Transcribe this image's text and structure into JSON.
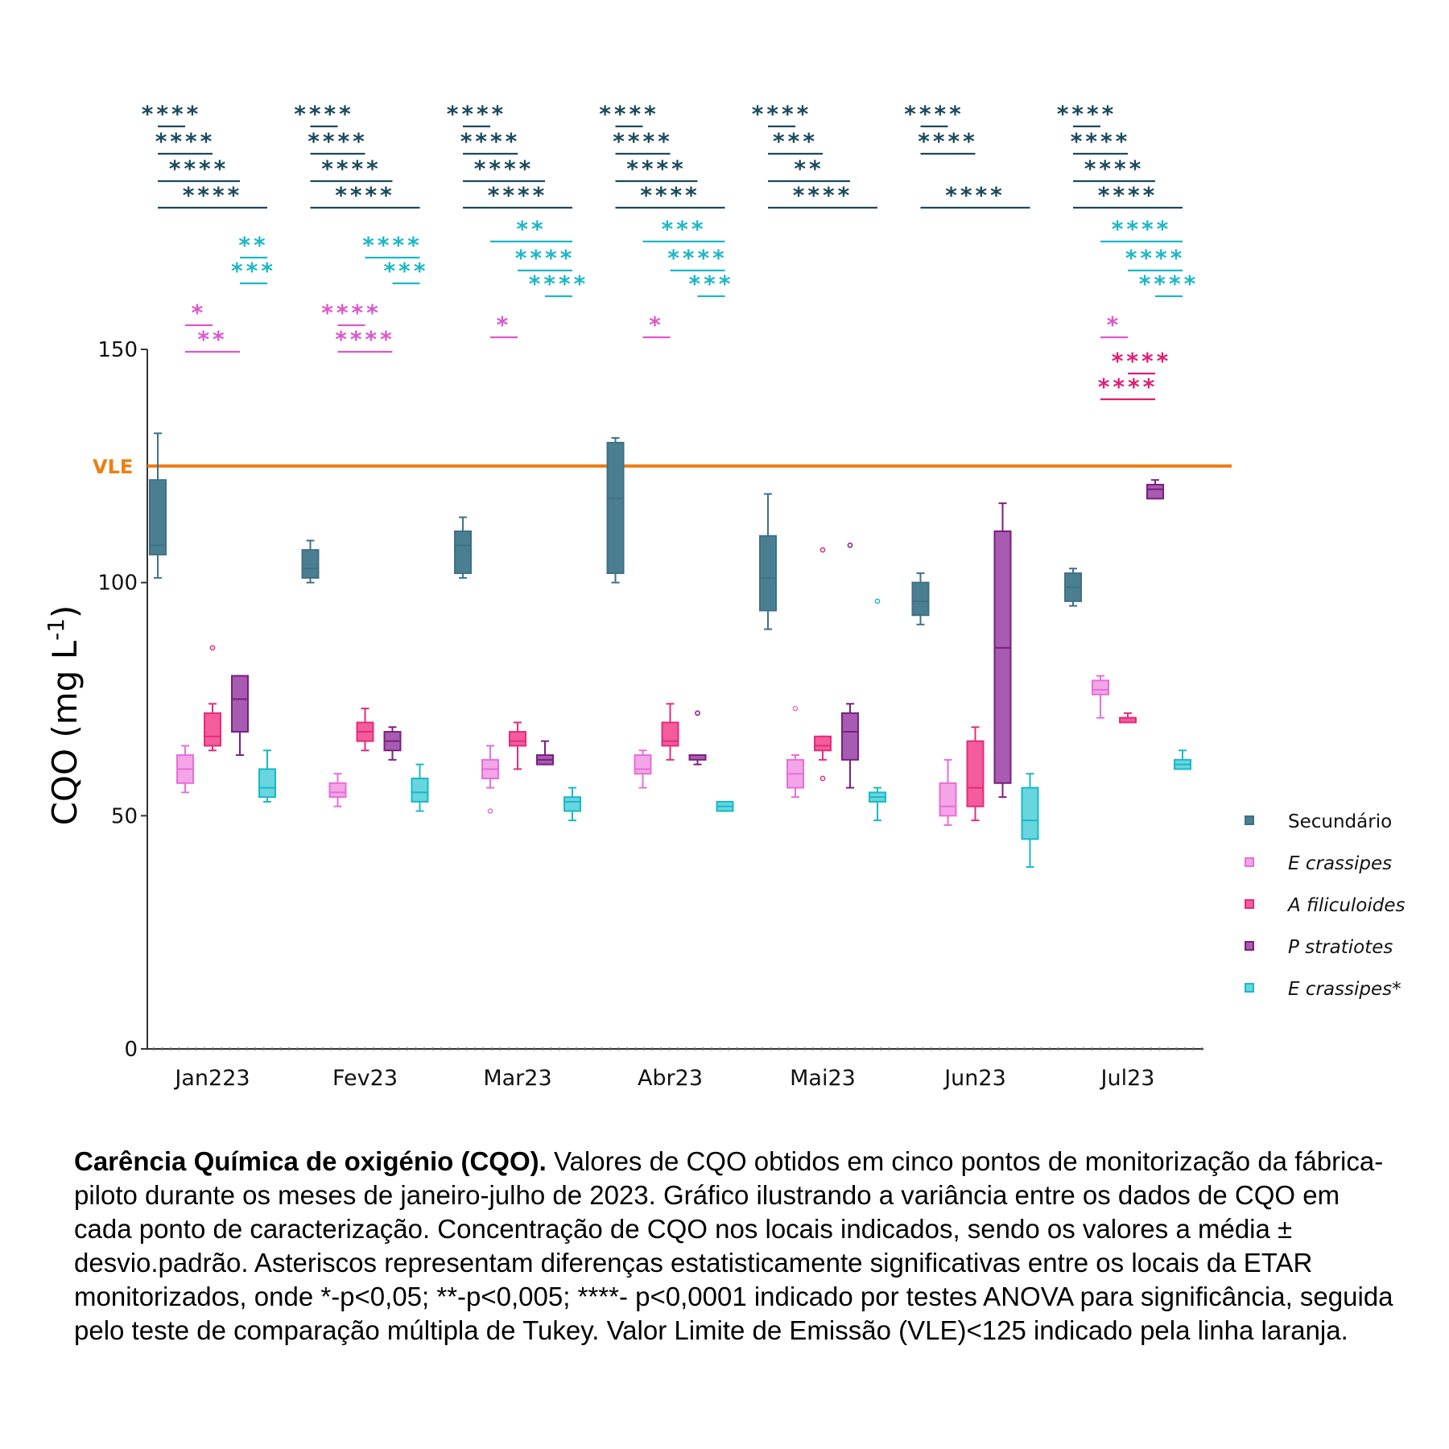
{
  "chart_data": {
    "type": "box",
    "ylabel": "CQO (mg L-1)",
    "ylim": [
      0,
      150
    ],
    "yticks": [
      0,
      50,
      100,
      150
    ],
    "categories": [
      "Jan223",
      "Fev23",
      "Mar23",
      "Abr23",
      "Mai23",
      "Jun23",
      "Jul23"
    ],
    "reference_line": {
      "label": "VLE",
      "value": 125,
      "color": "#ee7d12"
    },
    "legend_position": "right",
    "series": [
      {
        "name": "Secundário",
        "italic": false,
        "color": "#3f7185",
        "fill": "#4a7f92",
        "boxes": [
          {
            "min": 101,
            "q1": 106,
            "median": 108,
            "q3": 122,
            "max": 132
          },
          {
            "min": 100,
            "q1": 101,
            "median": 103,
            "q3": 107,
            "max": 109
          },
          {
            "min": 101,
            "q1": 102,
            "median": 108,
            "q3": 111,
            "max": 114
          },
          {
            "min": 100,
            "q1": 102,
            "median": 118,
            "q3": 130,
            "max": 131
          },
          {
            "min": 90,
            "q1": 94,
            "median": 101,
            "q3": 110,
            "max": 119
          },
          {
            "min": 91,
            "q1": 93,
            "median": 96,
            "q3": 100,
            "max": 102
          },
          {
            "min": 95,
            "q1": 96,
            "median": 99,
            "q3": 102,
            "max": 103
          }
        ],
        "outliers": [
          [],
          [],
          [],
          [],
          [],
          [],
          []
        ]
      },
      {
        "name": "E crassipes",
        "italic": true,
        "color": "#e66fd6",
        "fill": "#f3a5e8",
        "boxes": [
          {
            "min": 55,
            "q1": 57,
            "median": 60,
            "q3": 63,
            "max": 65
          },
          {
            "min": 52,
            "q1": 54,
            "median": 55,
            "q3": 57,
            "max": 59
          },
          {
            "min": 56,
            "q1": 58,
            "median": 60,
            "q3": 62,
            "max": 65
          },
          {
            "min": 56,
            "q1": 59,
            "median": 60,
            "q3": 63,
            "max": 64
          },
          {
            "min": 54,
            "q1": 56,
            "median": 59,
            "q3": 62,
            "max": 63
          },
          {
            "min": 48,
            "q1": 50,
            "median": 52,
            "q3": 57,
            "max": 62
          },
          {
            "min": 71,
            "q1": 76,
            "median": 77,
            "q3": 79,
            "max": 80
          }
        ],
        "outliers": [
          [],
          [],
          [
            51
          ],
          [],
          [
            73
          ],
          [],
          []
        ]
      },
      {
        "name": "A filiculoides",
        "italic": true,
        "color": "#e22d7c",
        "fill": "#f45c9b",
        "boxes": [
          {
            "min": 64,
            "q1": 65,
            "median": 67,
            "q3": 72,
            "max": 74
          },
          {
            "min": 64,
            "q1": 66,
            "median": 68,
            "q3": 70,
            "max": 73
          },
          {
            "min": 60,
            "q1": 65,
            "median": 66,
            "q3": 68,
            "max": 70
          },
          {
            "min": 62,
            "q1": 65,
            "median": 66,
            "q3": 70,
            "max": 74
          },
          {
            "min": 62,
            "q1": 64,
            "median": 65,
            "q3": 67,
            "max": 67
          },
          {
            "min": 49,
            "q1": 52,
            "median": 56,
            "q3": 66,
            "max": 69
          },
          {
            "min": 70,
            "q1": 70,
            "median": 71,
            "q3": 71,
            "max": 72
          }
        ],
        "outliers": [
          [
            86
          ],
          [],
          [],
          [],
          [
            107,
            58
          ],
          [],
          []
        ]
      },
      {
        "name": "P stratiotes",
        "italic": true,
        "color": "#7a1f7e",
        "fill": "#a75bb1",
        "boxes": [
          {
            "min": 63,
            "q1": 68,
            "median": 75,
            "q3": 80,
            "max": 80
          },
          {
            "min": 62,
            "q1": 64,
            "median": 66,
            "q3": 68,
            "max": 69
          },
          {
            "min": 61,
            "q1": 61,
            "median": 62,
            "q3": 63,
            "max": 66
          },
          {
            "min": 61,
            "q1": 62,
            "median": 63,
            "q3": 63,
            "max": 63
          },
          {
            "min": 56,
            "q1": 62,
            "median": 68,
            "q3": 72,
            "max": 74
          },
          {
            "min": 54,
            "q1": 57,
            "median": 86,
            "q3": 111,
            "max": 117
          },
          {
            "min": 118,
            "q1": 118,
            "median": 120,
            "q3": 121,
            "max": 122
          }
        ],
        "outliers": [
          [],
          [],
          [],
          [
            72
          ],
          [
            108
          ],
          [],
          []
        ]
      },
      {
        "name": "E crassipes*",
        "italic": true,
        "color": "#1bb8c6",
        "fill": "#67d6df",
        "boxes": [
          {
            "min": 53,
            "q1": 54,
            "median": 56,
            "q3": 60,
            "max": 64
          },
          {
            "min": 51,
            "q1": 53,
            "median": 55,
            "q3": 58,
            "max": 61
          },
          {
            "min": 49,
            "q1": 51,
            "median": 53,
            "q3": 54,
            "max": 56
          },
          {
            "min": 51,
            "q1": 51,
            "median": 52,
            "q3": 53,
            "max": 53
          },
          {
            "min": 49,
            "q1": 53,
            "median": 54,
            "q3": 55,
            "max": 56
          },
          {
            "min": 39,
            "q1": 45,
            "median": 49,
            "q3": 56,
            "max": 59
          },
          {
            "min": 60,
            "q1": 60,
            "median": 61,
            "q3": 62,
            "max": 64
          }
        ],
        "outliers": [
          [],
          [],
          [],
          [],
          [
            96
          ],
          [],
          []
        ]
      }
    ],
    "significance": [
      {
        "dark": [
          {
            "text": "****",
            "a": 0,
            "b": 1
          },
          {
            "text": "****",
            "a": 0,
            "b": 2
          },
          {
            "text": "****",
            "a": 0,
            "b": 3
          },
          {
            "text": "****",
            "a": 0,
            "b": 4
          }
        ],
        "teal": [
          {
            "text": "**",
            "a": 3,
            "b": 4
          },
          {
            "text": "***",
            "a": 3,
            "b": 4
          }
        ],
        "pink": [
          {
            "text": "*",
            "a": 1,
            "b": 2
          },
          {
            "text": "**",
            "a": 1,
            "b": 3
          }
        ],
        "magenta": []
      },
      {
        "dark": [
          {
            "text": "****",
            "a": 0,
            "b": 1
          },
          {
            "text": "****",
            "a": 0,
            "b": 2
          },
          {
            "text": "****",
            "a": 0,
            "b": 3
          },
          {
            "text": "****",
            "a": 0,
            "b": 4
          }
        ],
        "teal": [
          {
            "text": "****",
            "a": 2,
            "b": 4
          },
          {
            "text": "***",
            "a": 3,
            "b": 4
          }
        ],
        "pink": [
          {
            "text": "****",
            "a": 1,
            "b": 2
          },
          {
            "text": "****",
            "a": 1,
            "b": 3
          }
        ],
        "magenta": []
      },
      {
        "dark": [
          {
            "text": "****",
            "a": 0,
            "b": 1
          },
          {
            "text": "****",
            "a": 0,
            "b": 2
          },
          {
            "text": "****",
            "a": 0,
            "b": 3
          },
          {
            "text": "****",
            "a": 0,
            "b": 4
          }
        ],
        "teal": [
          {
            "text": "**",
            "a": 1,
            "b": 4
          },
          {
            "text": "****",
            "a": 2,
            "b": 4
          },
          {
            "text": "****",
            "a": 3,
            "b": 4
          }
        ],
        "pink": [
          {
            "text": "*",
            "a": 1,
            "b": 2
          }
        ],
        "magenta": []
      },
      {
        "dark": [
          {
            "text": "****",
            "a": 0,
            "b": 1
          },
          {
            "text": "****",
            "a": 0,
            "b": 2
          },
          {
            "text": "****",
            "a": 0,
            "b": 3
          },
          {
            "text": "****",
            "a": 0,
            "b": 4
          }
        ],
        "teal": [
          {
            "text": "***",
            "a": 1,
            "b": 4
          },
          {
            "text": "****",
            "a": 2,
            "b": 4
          },
          {
            "text": "***",
            "a": 3,
            "b": 4
          }
        ],
        "pink": [
          {
            "text": "*",
            "a": 1,
            "b": 2
          }
        ],
        "magenta": []
      },
      {
        "dark": [
          {
            "text": "****",
            "a": 0,
            "b": 1
          },
          {
            "text": "***",
            "a": 0,
            "b": 2
          },
          {
            "text": "**",
            "a": 0,
            "b": 3
          },
          {
            "text": "****",
            "a": 0,
            "b": 4
          }
        ],
        "teal": [],
        "pink": [],
        "magenta": []
      },
      {
        "dark": [
          {
            "text": "****",
            "a": 0,
            "b": 1
          },
          {
            "text": "****",
            "a": 0,
            "b": 2
          },
          {
            "text": "****",
            "a": 0,
            "b": 4
          }
        ],
        "teal": [],
        "pink": [],
        "magenta": []
      },
      {
        "dark": [
          {
            "text": "****",
            "a": 0,
            "b": 1
          },
          {
            "text": "****",
            "a": 0,
            "b": 2
          },
          {
            "text": "****",
            "a": 0,
            "b": 3
          },
          {
            "text": "****",
            "a": 0,
            "b": 4
          }
        ],
        "teal": [
          {
            "text": "****",
            "a": 1,
            "b": 4
          },
          {
            "text": "****",
            "a": 2,
            "b": 4
          },
          {
            "text": "****",
            "a": 3,
            "b": 4
          }
        ],
        "pink": [
          {
            "text": "*",
            "a": 1,
            "b": 2
          }
        ],
        "magenta": [
          {
            "text": "****",
            "a": 2,
            "b": 3
          },
          {
            "text": "****",
            "a": 1,
            "b": 3
          }
        ]
      }
    ],
    "significance_colors": {
      "dark": "#1b4a5c",
      "teal": "#1bb8c6",
      "pink": "#dd57cc",
      "magenta": "#e01e74"
    }
  },
  "caption": {
    "bold": "Carência Química de oxigénio (CQO).",
    "text": " Valores de CQO obtidos em cinco pontos de monitorização da fábrica-piloto durante os meses de janeiro-julho de 2023. Gráfico ilustrando a variância entre os dados de CQO em cada ponto de caracterização. Concentração de CQO nos locais indicados, sendo os valores a média ± desvio.padrão. Asteriscos representam diferenças estatisticamente significativas entre os locais da ETAR monitorizados, onde *-p<0,05; **-p<0,005; ****- p<0,0001 indicado por testes ANOVA para significância, seguida pelo teste de comparação múltipla de Tukey. Valor Limite de Emissão (VLE)<125 indicado pela linha laranja."
  }
}
